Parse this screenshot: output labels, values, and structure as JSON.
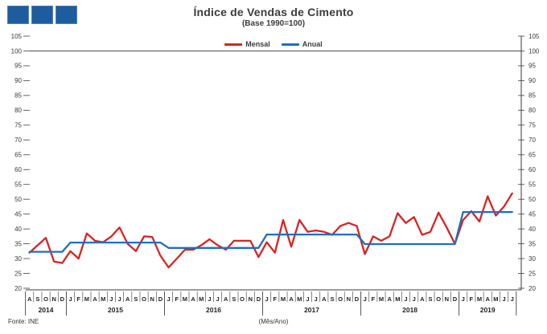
{
  "title": "Índice de Vendas de Cimento",
  "subtitle": "(Base 1990=100)",
  "legend": [
    {
      "label": "Mensal",
      "color": "#d92323"
    },
    {
      "label": "Anual",
      "color": "#1d6fbf"
    }
  ],
  "source": "Fonte: INE",
  "xaxis_title": "(Mês/Ano)",
  "logo": {
    "square_count": 3,
    "color": "#1d5c9d"
  },
  "chart_data": {
    "type": "line",
    "title": "Índice de Vendas de Cimento",
    "subtitle": "(Base 1990=100)",
    "ylim": [
      20,
      105
    ],
    "ytick_step": 5,
    "base_line": 100,
    "grid": "off",
    "legend_position": "top-center",
    "year_groups": [
      {
        "year": "2014",
        "months": [
          "A",
          "S",
          "O",
          "N",
          "D"
        ]
      },
      {
        "year": "2015",
        "months": [
          "J",
          "F",
          "M",
          "A",
          "M",
          "J",
          "J",
          "A",
          "S",
          "O",
          "N",
          "D"
        ]
      },
      {
        "year": "2016",
        "months": [
          "J",
          "F",
          "M",
          "A",
          "M",
          "J",
          "J",
          "A",
          "S",
          "O",
          "N",
          "D"
        ]
      },
      {
        "year": "2017",
        "months": [
          "J",
          "F",
          "M",
          "A",
          "M",
          "J",
          "J",
          "A",
          "S",
          "O",
          "N",
          "D"
        ]
      },
      {
        "year": "2018",
        "months": [
          "J",
          "F",
          "M",
          "A",
          "M",
          "J",
          "J",
          "A",
          "S",
          "O",
          "N",
          "D"
        ]
      },
      {
        "year": "2019",
        "months": [
          "J",
          "F",
          "M",
          "A",
          "M",
          "J",
          "J"
        ]
      }
    ],
    "series": [
      {
        "name": "Mensal",
        "color": "#d92323",
        "values": [
          32,
          34.5,
          37,
          29,
          28.5,
          32.5,
          30,
          38.5,
          36,
          35.5,
          37.5,
          40.5,
          35,
          32.5,
          37.5,
          37.3,
          31,
          27,
          30,
          33,
          33,
          34.5,
          36.5,
          34.5,
          33,
          36,
          36,
          36,
          30.5,
          35.5,
          32,
          43,
          34,
          43,
          39,
          39.5,
          39,
          38,
          41,
          42,
          41,
          31.5,
          37.5,
          36,
          37.5,
          45.3,
          42,
          44,
          38,
          39,
          45.5,
          40.5,
          35,
          43,
          46,
          42.5,
          51,
          44.5,
          47.5,
          52
        ]
      },
      {
        "name": "Anual",
        "color": "#1d6fbf",
        "values_by_year": [
          32.3,
          35.4,
          33.6,
          38.1,
          34.9,
          45.7
        ]
      }
    ]
  }
}
